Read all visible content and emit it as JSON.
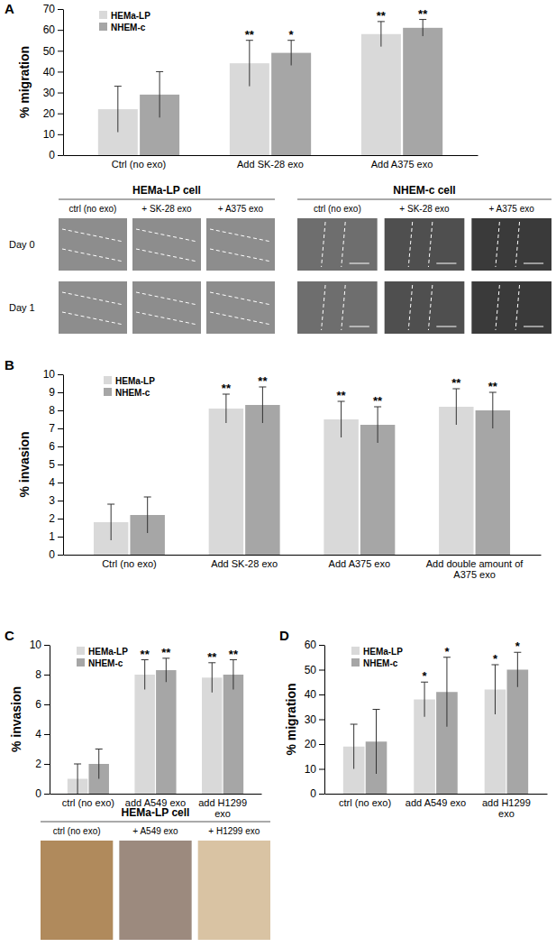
{
  "chart_data": [
    {
      "type": "bar",
      "title": "A",
      "y_label": "% migration",
      "categories": [
        "Ctrl (no exo)",
        "Add SK-28 exo",
        "Add A375 exo"
      ],
      "series": [
        {
          "name": "HEMa-LP",
          "color": "#d9d9d9",
          "values": [
            22,
            44,
            58
          ],
          "errors": [
            11,
            11,
            6
          ],
          "annotations": [
            null,
            "**",
            "**"
          ]
        },
        {
          "name": "NHEM-c",
          "color": "#a6a6a6",
          "values": [
            29,
            49,
            61
          ],
          "errors": [
            11,
            6,
            4
          ],
          "annotations": [
            null,
            "*",
            "**"
          ]
        }
      ],
      "ylim": [
        0,
        70
      ],
      "yticks": [
        0,
        10,
        20,
        30,
        40,
        50,
        60,
        70
      ],
      "legend": "top-left"
    },
    {
      "type": "bar",
      "title": "B",
      "y_label": "% invasion",
      "categories": [
        "Ctrl (no exo)",
        "Add SK-28 exo",
        "Add A375 exo",
        "Add double amount of A375 exo"
      ],
      "series": [
        {
          "name": "HEMa-LP",
          "color": "#d9d9d9",
          "values": [
            1.8,
            8.1,
            7.5,
            8.2
          ],
          "errors": [
            1.0,
            0.8,
            1.0,
            1.0
          ],
          "annotations": [
            null,
            "**",
            "**",
            "**"
          ]
        },
        {
          "name": "NHEM-c",
          "color": "#a6a6a6",
          "values": [
            2.2,
            8.3,
            7.2,
            8.0
          ],
          "errors": [
            1.0,
            1.0,
            1.0,
            1.0
          ],
          "annotations": [
            null,
            "**",
            "**",
            "**"
          ]
        }
      ],
      "ylim": [
        0,
        10
      ],
      "yticks": [
        0,
        1,
        2,
        3,
        4,
        5,
        6,
        7,
        8,
        9,
        10
      ],
      "legend": "top-left"
    },
    {
      "type": "bar",
      "title": "C",
      "y_label": "% invasion",
      "categories": [
        "ctrl (no exo)",
        "add A549 exo",
        "add H1299 exo"
      ],
      "series": [
        {
          "name": "HEMa-LP",
          "color": "#d9d9d9",
          "values": [
            1.0,
            8.0,
            7.8
          ],
          "errors": [
            1.0,
            1.0,
            1.0
          ],
          "annotations": [
            null,
            "**",
            "**"
          ]
        },
        {
          "name": "NHEM-c",
          "color": "#a6a6a6",
          "values": [
            2.0,
            8.3,
            8.0
          ],
          "errors": [
            1.0,
            0.8,
            1.0
          ],
          "annotations": [
            null,
            "**",
            "**"
          ]
        }
      ],
      "ylim": [
        0,
        10
      ],
      "yticks": [
        0,
        2,
        4,
        6,
        8,
        10
      ],
      "legend": "top-left"
    },
    {
      "type": "bar",
      "title": "D",
      "y_label": "% migration",
      "categories": [
        "ctrl (no exo)",
        "add A549 exo",
        "add H1299 exo"
      ],
      "series": [
        {
          "name": "HEMa-LP",
          "color": "#d9d9d9",
          "values": [
            19,
            38,
            42
          ],
          "errors": [
            9,
            7,
            10
          ],
          "annotations": [
            null,
            "*",
            "*"
          ]
        },
        {
          "name": "NHEM-c",
          "color": "#a6a6a6",
          "values": [
            21,
            41,
            50
          ],
          "errors": [
            13,
            14,
            7
          ],
          "annotations": [
            null,
            "*",
            "*"
          ]
        }
      ],
      "ylim": [
        0,
        60
      ],
      "yticks": [
        0,
        10,
        20,
        30,
        40,
        50,
        60
      ],
      "legend": "top-left"
    }
  ],
  "images": [
    {
      "title": "HEMa-LP cell",
      "columns": [
        "ctrl (no exo)",
        "+ SK-28 exo",
        "+ A375 exo"
      ],
      "rows": [
        "Day 0",
        "Day 1"
      ]
    },
    {
      "title": "NHEM-c cell",
      "columns": [
        "ctrl (no exo)",
        "+ SK-28 exo",
        "+ A375 exo"
      ]
    },
    {
      "title": "HEMa-LP cell",
      "columns": [
        "ctrl (no exo)",
        "+ A549 exo",
        "+ H1299 exo"
      ]
    }
  ]
}
